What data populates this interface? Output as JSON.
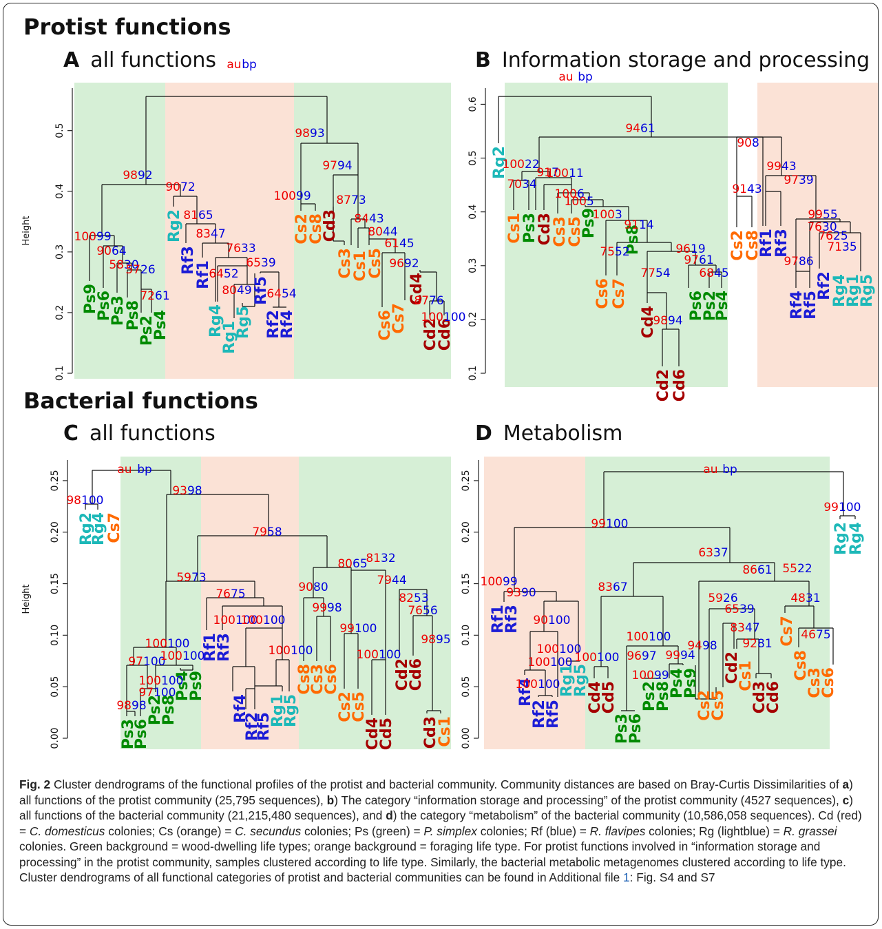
{
  "sections": {
    "protist": "Protist functions",
    "bacterial": "Bacterial functions"
  },
  "panels": {
    "A": {
      "letter": "A",
      "title": "all functions"
    },
    "B": {
      "letter": "B",
      "title": "Information storage and processing"
    },
    "C": {
      "letter": "C",
      "title": "all functions"
    },
    "D": {
      "letter": "D",
      "title": "Metabolism"
    }
  },
  "colors": {
    "Cd": "#a50000",
    "Cs": "#ff6a00",
    "Ps": "#008a00",
    "Rf": "#1c1cd6",
    "Rg": "#1db8b8",
    "green_bg": "#d6efd6",
    "orange_bg": "#fbe2d6",
    "au": "#ee0000",
    "bp": "#0000dd"
  },
  "chart_data": [
    {
      "type": "dendrogram",
      "panel": "A",
      "ylabel": "Height",
      "ylim": [
        0.1,
        0.57
      ],
      "ticks": [
        "0.1",
        "0.2",
        "0.3",
        "0.4",
        "0.5"
      ],
      "legend": {
        "au": "au",
        "bp": "bp"
      },
      "leaves": [
        "Ps9",
        "Ps6",
        "Ps3",
        "Ps8",
        "Ps2",
        "Ps4",
        "Rg2",
        "Rf3",
        "Rf1",
        "Rg4",
        "Rg1",
        "Rg5",
        "Rf5",
        "Rf2",
        "Rf4",
        "Cs2",
        "Cs8",
        "Cd3",
        "Cs3",
        "Cs1",
        "Cs5",
        "Cs6",
        "Cs7",
        "Cd4",
        "Cd2",
        "Cd6"
      ],
      "support_values": [
        {
          "au": "98",
          "bp": "92"
        },
        {
          "au": "100",
          "bp": "99"
        },
        {
          "au": "90",
          "bp": "64"
        },
        {
          "au": "58",
          "bp": "30"
        },
        {
          "au": "57",
          "bp": "26"
        },
        {
          "au": "72",
          "bp": "61"
        },
        {
          "au": "90",
          "bp": "72"
        },
        {
          "au": "81",
          "bp": "65"
        },
        {
          "au": "83",
          "bp": "47"
        },
        {
          "au": "76",
          "bp": "33"
        },
        {
          "au": "64",
          "bp": "52"
        },
        {
          "au": "80",
          "bp": "49"
        },
        {
          "au": "65",
          "bp": "39"
        },
        {
          "au": "64",
          "bp": "54"
        },
        {
          "au": "98",
          "bp": "93"
        },
        {
          "au": "100",
          "bp": "99"
        },
        {
          "au": "97",
          "bp": "94"
        },
        {
          "au": "87",
          "bp": "73"
        },
        {
          "au": "84",
          "bp": "43"
        },
        {
          "au": "80",
          "bp": "44"
        },
        {
          "au": "61",
          "bp": "45"
        },
        {
          "au": "96",
          "bp": "92"
        },
        {
          "au": "87",
          "bp": "76"
        },
        {
          "au": "100",
          "bp": "100"
        }
      ]
    },
    {
      "type": "dendrogram",
      "panel": "B",
      "ylabel": "",
      "ylim": [
        0.1,
        0.63
      ],
      "ticks": [
        "0.1",
        "0.2",
        "0.3",
        "0.4",
        "0.5",
        "0.6"
      ],
      "legend": {
        "au": "au",
        "bp": "bp"
      },
      "leaves": [
        "Rg2",
        "Cs1",
        "Ps3",
        "Cd3",
        "Cs3",
        "Cs5",
        "Ps9",
        "Cs6",
        "Cs7",
        "Ps8",
        "Cd4",
        "Cd2",
        "Cd6",
        "Ps6",
        "Ps2",
        "Ps4",
        "Cs2",
        "Cs8",
        "Rf1",
        "Rf3",
        "Rf4",
        "Rf5",
        "Rf2",
        "Rg4",
        "Rg1",
        "Rg5"
      ],
      "support_values": [
        {
          "au": "94",
          "bp": "61"
        },
        {
          "au": "100",
          "bp": "22"
        },
        {
          "au": "70",
          "bp": "34"
        },
        {
          "au": "91",
          "bp": "7"
        },
        {
          "au": "100",
          "bp": "11"
        },
        {
          "au": "100",
          "bp": "6"
        },
        {
          "au": "100",
          "bp": "5"
        },
        {
          "au": "100",
          "bp": "3"
        },
        {
          "au": "91",
          "bp": "14"
        },
        {
          "au": "75",
          "bp": "52"
        },
        {
          "au": "96",
          "bp": "19"
        },
        {
          "au": "77",
          "bp": "54"
        },
        {
          "au": "98",
          "bp": "94"
        },
        {
          "au": "97",
          "bp": "61"
        },
        {
          "au": "68",
          "bp": "45"
        },
        {
          "au": "90",
          "bp": "8"
        },
        {
          "au": "91",
          "bp": "43"
        },
        {
          "au": "99",
          "bp": "43"
        },
        {
          "au": "97",
          "bp": "39"
        },
        {
          "au": "99",
          "bp": "55"
        },
        {
          "au": "76",
          "bp": "30"
        },
        {
          "au": "76",
          "bp": "25"
        },
        {
          "au": "71",
          "bp": "35"
        },
        {
          "au": "97",
          "bp": "86"
        }
      ]
    },
    {
      "type": "dendrogram",
      "panel": "C",
      "ylabel": "Height",
      "ylim": [
        0.0,
        0.27
      ],
      "ticks": [
        "0.00",
        "0.05",
        "0.10",
        "0.15",
        "0.20",
        "0.25"
      ],
      "legend": {
        "au": "au",
        "bp": "bp"
      },
      "leaves": [
        "Rg2",
        "Rg4",
        "Cs7",
        "Ps3",
        "Ps6",
        "Ps2",
        "Ps8",
        "Ps4",
        "Ps9",
        "Rf1",
        "Rf3",
        "Rf4",
        "Rf2",
        "Rf5",
        "Rg1",
        "Rg5",
        "Cs8",
        "Cs3",
        "Cs6",
        "Cs2",
        "Cs5",
        "Cd4",
        "Cd5",
        "Cd2",
        "Cd6",
        "Cd3",
        "Cs1"
      ],
      "support_values": [
        {
          "au": "93",
          "bp": "98"
        },
        {
          "au": "98",
          "bp": "100"
        },
        {
          "au": "79",
          "bp": "58"
        },
        {
          "au": "59",
          "bp": "73"
        },
        {
          "au": "100",
          "bp": "100"
        },
        {
          "au": "97",
          "bp": "100"
        },
        {
          "au": "100",
          "bp": "100"
        },
        {
          "au": "98",
          "bp": "98"
        },
        {
          "au": "97",
          "bp": "100"
        },
        {
          "au": "100",
          "bp": "100"
        },
        {
          "au": "76",
          "bp": "75"
        },
        {
          "au": "100",
          "bp": "100"
        },
        {
          "au": "100",
          "bp": "100"
        },
        {
          "au": "100",
          "bp": "100"
        },
        {
          "au": "80",
          "bp": "65"
        },
        {
          "au": "90",
          "bp": "80"
        },
        {
          "au": "99",
          "bp": "98"
        },
        {
          "au": "81",
          "bp": "32"
        },
        {
          "au": "99",
          "bp": "100"
        },
        {
          "au": "79",
          "bp": "44"
        },
        {
          "au": "100",
          "bp": "100"
        },
        {
          "au": "82",
          "bp": "53"
        },
        {
          "au": "76",
          "bp": "56"
        },
        {
          "au": "98",
          "bp": "95"
        }
      ]
    },
    {
      "type": "dendrogram",
      "panel": "D",
      "ylabel": "",
      "ylim": [
        0.0,
        0.27
      ],
      "ticks": [
        "0.00",
        "0.05",
        "0.10",
        "0.15",
        "0.20",
        "0.25"
      ],
      "legend": {
        "au": "au",
        "bp": "bp"
      },
      "leaves": [
        "Rf1",
        "Rf3",
        "Rf4",
        "Rf2",
        "Rf5",
        "Rg1",
        "Rg5",
        "Cd4",
        "Cd5",
        "Ps3",
        "Ps6",
        "Ps2",
        "Ps8",
        "Ps4",
        "Ps9",
        "Cs2",
        "Cs5",
        "Cd2",
        "Cs1",
        "Cd3",
        "Cd6",
        "Cs7",
        "Cs8",
        "Cs3",
        "Cs6",
        "Rg2",
        "Rg4"
      ],
      "support_values": [
        {
          "au": "99",
          "bp": "100"
        },
        {
          "au": "100",
          "bp": "99"
        },
        {
          "au": "93",
          "bp": "90"
        },
        {
          "au": "90",
          "bp": "100"
        },
        {
          "au": "100",
          "bp": "100"
        },
        {
          "au": "100",
          "bp": "100"
        },
        {
          "au": "100",
          "bp": "100"
        },
        {
          "au": "63",
          "bp": "37"
        },
        {
          "au": "83",
          "bp": "67"
        },
        {
          "au": "100",
          "bp": "100"
        },
        {
          "au": "96",
          "bp": "97"
        },
        {
          "au": "100",
          "bp": "99"
        },
        {
          "au": "100",
          "bp": "100"
        },
        {
          "au": "99",
          "bp": "94"
        },
        {
          "au": "86",
          "bp": "61"
        },
        {
          "au": "59",
          "bp": "26"
        },
        {
          "au": "94",
          "bp": "98"
        },
        {
          "au": "65",
          "bp": "39"
        },
        {
          "au": "83",
          "bp": "47"
        },
        {
          "au": "92",
          "bp": "81"
        },
        {
          "au": "55",
          "bp": "22"
        },
        {
          "au": "48",
          "bp": "31"
        },
        {
          "au": "46",
          "bp": "75"
        },
        {
          "au": "99",
          "bp": "100"
        }
      ]
    }
  ],
  "caption": {
    "label": "Fig. 2",
    "parts": [
      {
        "t": " Cluster dendrograms of the functional profiles of the protist and bacterial community. Community distances are based on Bray-Curtis Dissimilarities of "
      },
      {
        "t": "a",
        "b": true
      },
      {
        "t": ") all functions of the protist community (25,795 sequences), "
      },
      {
        "t": "b",
        "b": true
      },
      {
        "t": ") The category “information storage and processing” of the protist community (4527 sequences), "
      },
      {
        "t": "c",
        "b": true
      },
      {
        "t": ") all functions of the bacterial community (21,215,480 sequences), and "
      },
      {
        "t": "d",
        "b": true
      },
      {
        "t": ") the category “metabolism” of the bacterial community (10,586,058 sequences). Cd (red) = "
      },
      {
        "t": "C. domesticus",
        "i": true
      },
      {
        "t": " colonies; Cs (orange) = "
      },
      {
        "t": "C. secundus",
        "i": true
      },
      {
        "t": " colonies; Ps (green) = "
      },
      {
        "t": "P. simplex",
        "i": true
      },
      {
        "t": " colonies; Rf (blue) = "
      },
      {
        "t": "R. flavipes",
        "i": true
      },
      {
        "t": " colonies; Rg (lightblue) = "
      },
      {
        "t": "R. grassei",
        "i": true
      },
      {
        "t": " colonies. Green background = wood-dwelling life types; orange background = foraging life type. For protist functions involved in “information storage and processing” in the protist community, samples clustered according to life type. Similarly, the bacterial metabolic metagenomes clustered according to life type. Cluster dendrograms of all functional categories of protist and bacterial communities can be found in Additional file "
      },
      {
        "t": "1",
        "link": true
      },
      {
        "t": ": Fig. S4 and S7"
      }
    ]
  }
}
